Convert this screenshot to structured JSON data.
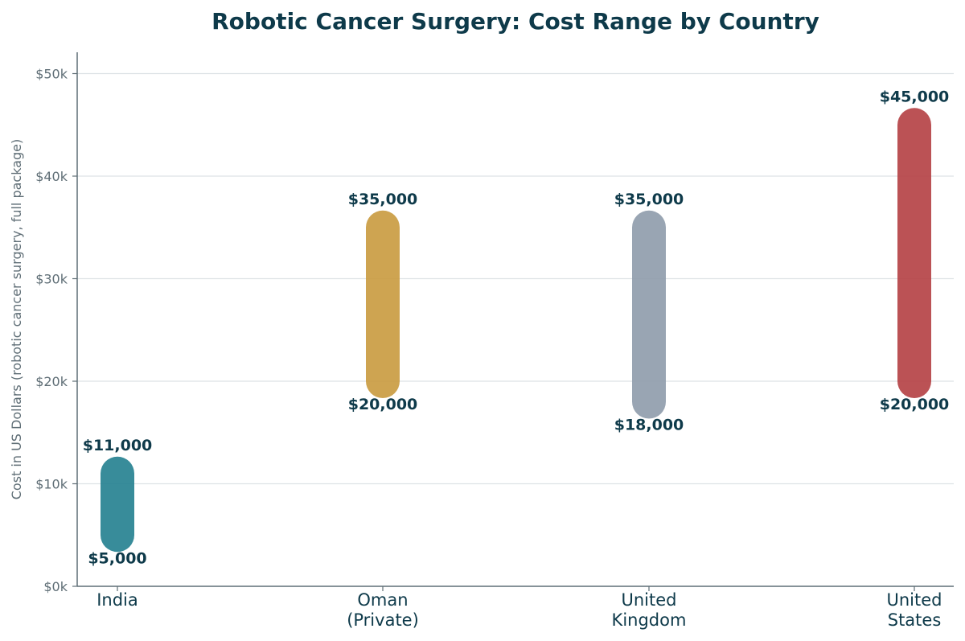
{
  "chart_data": {
    "type": "range",
    "title": "Robotic Cancer Surgery: Cost Range by Country",
    "ylabel": "Cost in US Dollars (robotic cancer surgery, full package)",
    "xlabel": "",
    "ylim": [
      0,
      52000
    ],
    "yticks": [
      0,
      10000,
      20000,
      30000,
      40000,
      50000
    ],
    "ytick_labels": [
      "$0k",
      "$10k",
      "$20k",
      "$30k",
      "$40k",
      "$50k"
    ],
    "grid": "horizontal",
    "categories": [
      [
        "India"
      ],
      [
        "Oman",
        "(Private)"
      ],
      [
        "United",
        "Kingdom"
      ],
      [
        "United",
        "States"
      ]
    ],
    "ranges": [
      {
        "low": 5000,
        "high": 11000,
        "low_label": "$5,000",
        "high_label": "$11,000",
        "color": "#227f8f"
      },
      {
        "low": 20000,
        "high": 35000,
        "low_label": "$20,000",
        "high_label": "$35,000",
        "color": "#c99a3e"
      },
      {
        "low": 18000,
        "high": 35000,
        "low_label": "$18,000",
        "high_label": "$35,000",
        "color": "#8e9bab"
      },
      {
        "low": 20000,
        "high": 45000,
        "low_label": "$20,000",
        "high_label": "$45,000",
        "color": "#b43f43"
      }
    ]
  }
}
